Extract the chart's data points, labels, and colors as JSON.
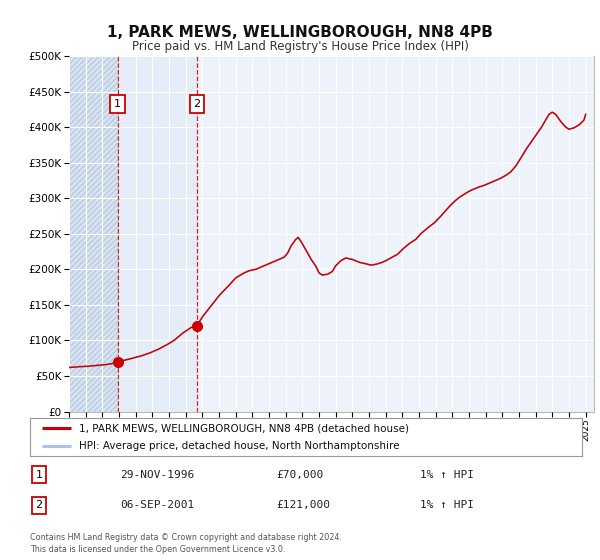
{
  "title": "1, PARK MEWS, WELLINGBOROUGH, NN8 4PB",
  "subtitle": "Price paid vs. HM Land Registry's House Price Index (HPI)",
  "ylim": [
    0,
    500000
  ],
  "xlim_start": 1994.0,
  "xlim_end": 2025.5,
  "bg_color": "#ffffff",
  "plot_bg_color": "#eef2fa",
  "grid_color": "#ffffff",
  "hpi_color": "#aac4e8",
  "price_color": "#cc0000",
  "sale1_x": 1996.91,
  "sale1_y": 70000,
  "sale1_label": "1",
  "sale2_x": 2001.68,
  "sale2_y": 121000,
  "sale2_label": "2",
  "legend_line1": "1, PARK MEWS, WELLINGBOROUGH, NN8 4PB (detached house)",
  "legend_line2": "HPI: Average price, detached house, North Northamptonshire",
  "table_row1_num": "1",
  "table_row1_date": "29-NOV-1996",
  "table_row1_price": "£70,000",
  "table_row1_hpi": "1% ↑ HPI",
  "table_row2_num": "2",
  "table_row2_date": "06-SEP-2001",
  "table_row2_price": "£121,000",
  "table_row2_hpi": "1% ↑ HPI",
  "footer1": "Contains HM Land Registry data © Crown copyright and database right 2024.",
  "footer2": "This data is licensed under the Open Government Licence v3.0.",
  "shade_x1": 1996.91,
  "shade_x2": 2001.68,
  "hpi_anchors": [
    [
      1994.0,
      62000
    ],
    [
      1994.5,
      63000
    ],
    [
      1995.0,
      63500
    ],
    [
      1995.5,
      64500
    ],
    [
      1996.0,
      65500
    ],
    [
      1996.5,
      67000
    ],
    [
      1996.91,
      70000
    ],
    [
      1997.3,
      72000
    ],
    [
      1997.8,
      75000
    ],
    [
      1998.3,
      78000
    ],
    [
      1998.8,
      82000
    ],
    [
      1999.3,
      87000
    ],
    [
      1999.8,
      93000
    ],
    [
      2000.3,
      100000
    ],
    [
      2000.8,
      110000
    ],
    [
      2001.3,
      118000
    ],
    [
      2001.68,
      121000
    ],
    [
      2002.0,
      133000
    ],
    [
      2002.5,
      148000
    ],
    [
      2003.0,
      163000
    ],
    [
      2003.5,
      175000
    ],
    [
      2004.0,
      188000
    ],
    [
      2004.5,
      195000
    ],
    [
      2004.8,
      198000
    ],
    [
      2005.2,
      200000
    ],
    [
      2005.5,
      203000
    ],
    [
      2005.8,
      206000
    ],
    [
      2006.2,
      210000
    ],
    [
      2006.6,
      214000
    ],
    [
      2006.9,
      217000
    ],
    [
      2007.1,
      222000
    ],
    [
      2007.3,
      232000
    ],
    [
      2007.6,
      242000
    ],
    [
      2007.75,
      245000
    ],
    [
      2007.9,
      240000
    ],
    [
      2008.2,
      228000
    ],
    [
      2008.5,
      215000
    ],
    [
      2008.8,
      205000
    ],
    [
      2009.0,
      195000
    ],
    [
      2009.2,
      192000
    ],
    [
      2009.5,
      193000
    ],
    [
      2009.8,
      197000
    ],
    [
      2010.0,
      205000
    ],
    [
      2010.3,
      212000
    ],
    [
      2010.6,
      216000
    ],
    [
      2011.0,
      214000
    ],
    [
      2011.4,
      210000
    ],
    [
      2011.8,
      208000
    ],
    [
      2012.1,
      206000
    ],
    [
      2012.4,
      207000
    ],
    [
      2012.7,
      209000
    ],
    [
      2013.0,
      212000
    ],
    [
      2013.3,
      216000
    ],
    [
      2013.7,
      221000
    ],
    [
      2014.0,
      228000
    ],
    [
      2014.4,
      236000
    ],
    [
      2014.8,
      242000
    ],
    [
      2015.1,
      250000
    ],
    [
      2015.5,
      258000
    ],
    [
      2015.9,
      265000
    ],
    [
      2016.2,
      272000
    ],
    [
      2016.5,
      280000
    ],
    [
      2016.8,
      288000
    ],
    [
      2017.1,
      295000
    ],
    [
      2017.4,
      301000
    ],
    [
      2017.8,
      307000
    ],
    [
      2018.1,
      311000
    ],
    [
      2018.5,
      315000
    ],
    [
      2018.9,
      318000
    ],
    [
      2019.2,
      321000
    ],
    [
      2019.6,
      325000
    ],
    [
      2019.9,
      328000
    ],
    [
      2020.2,
      332000
    ],
    [
      2020.5,
      337000
    ],
    [
      2020.8,
      345000
    ],
    [
      2021.1,
      356000
    ],
    [
      2021.4,
      368000
    ],
    [
      2021.7,
      378000
    ],
    [
      2022.0,
      388000
    ],
    [
      2022.3,
      398000
    ],
    [
      2022.6,
      410000
    ],
    [
      2022.8,
      418000
    ],
    [
      2023.0,
      421000
    ],
    [
      2023.2,
      418000
    ],
    [
      2023.5,
      408000
    ],
    [
      2023.8,
      400000
    ],
    [
      2024.0,
      397000
    ],
    [
      2024.3,
      399000
    ],
    [
      2024.6,
      403000
    ],
    [
      2024.9,
      410000
    ],
    [
      2025.0,
      418000
    ]
  ]
}
